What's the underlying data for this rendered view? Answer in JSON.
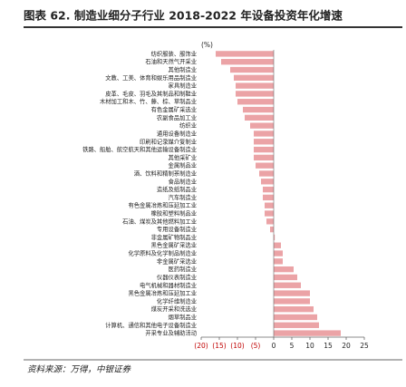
{
  "chart_data": {
    "type": "bar",
    "orientation": "horizontal",
    "title": "图表 62. 制造业细分子行业 2018-2022 年设备投资年化增速",
    "unit": "(%)",
    "source": "资料来源：万得，中银证券",
    "color": "#eba3a6",
    "categories": [
      "纺织服装、服饰业",
      "石油和天然气开采业",
      "其他制造业",
      "文教、工美、体育和娱乐用品制造业",
      "家具制造业",
      "皮革、毛皮、羽毛及其制品和制鞋业",
      "木材加工和木、竹、藤、棕、草制品业",
      "有色金属矿采选业",
      "农副食品加工业",
      "纺织业",
      "通用设备制造业",
      "印刷和记录媒介复制业",
      "铁路、船舶、航空航天和其他运输设备制造业",
      "其他采矿业",
      "金属制品业",
      "酒、饮料和精制茶制造业",
      "食品制造业",
      "造纸及纸制品业",
      "汽车制造业",
      "有色金属冶炼和压延加工业",
      "橡胶和塑料制品业",
      "石油、煤炭及其他燃料加工业",
      "专用设备制造业",
      "非金属矿物制品业",
      "黑色金属矿采选业",
      "化学原料及化学制品制造业",
      "非金属矿采选业",
      "医药制造业",
      "仪器仪表制造业",
      "电气机械和器材制造业",
      "黑色金属冶炼和压延加工业",
      "化学纤维制造业",
      "煤炭开采和洗选业",
      "烟草制品业",
      "计算机、通信和其他电子设备制造业",
      "开采专业及辅助活动"
    ],
    "values": [
      -16,
      -14.5,
      -12,
      -11,
      -10.5,
      -10.5,
      -10,
      -8.5,
      -8,
      -6.5,
      -5.5,
      -5.5,
      -5.5,
      -5.5,
      -5,
      -4,
      -3.5,
      -3,
      -3,
      -2.5,
      -2.5,
      -2,
      -1,
      0.3,
      2,
      2.5,
      2.5,
      5.5,
      6.5,
      7.5,
      10,
      10,
      11,
      12,
      12.5,
      18.5
    ],
    "xlim": [
      -20,
      25
    ],
    "xticks": [
      {
        "value": -20,
        "label": "(20)"
      },
      {
        "value": -15,
        "label": "(15)"
      },
      {
        "value": -10,
        "label": "(10)"
      },
      {
        "value": -5,
        "label": "(5)"
      },
      0,
      5,
      10,
      15,
      20,
      25
    ]
  }
}
